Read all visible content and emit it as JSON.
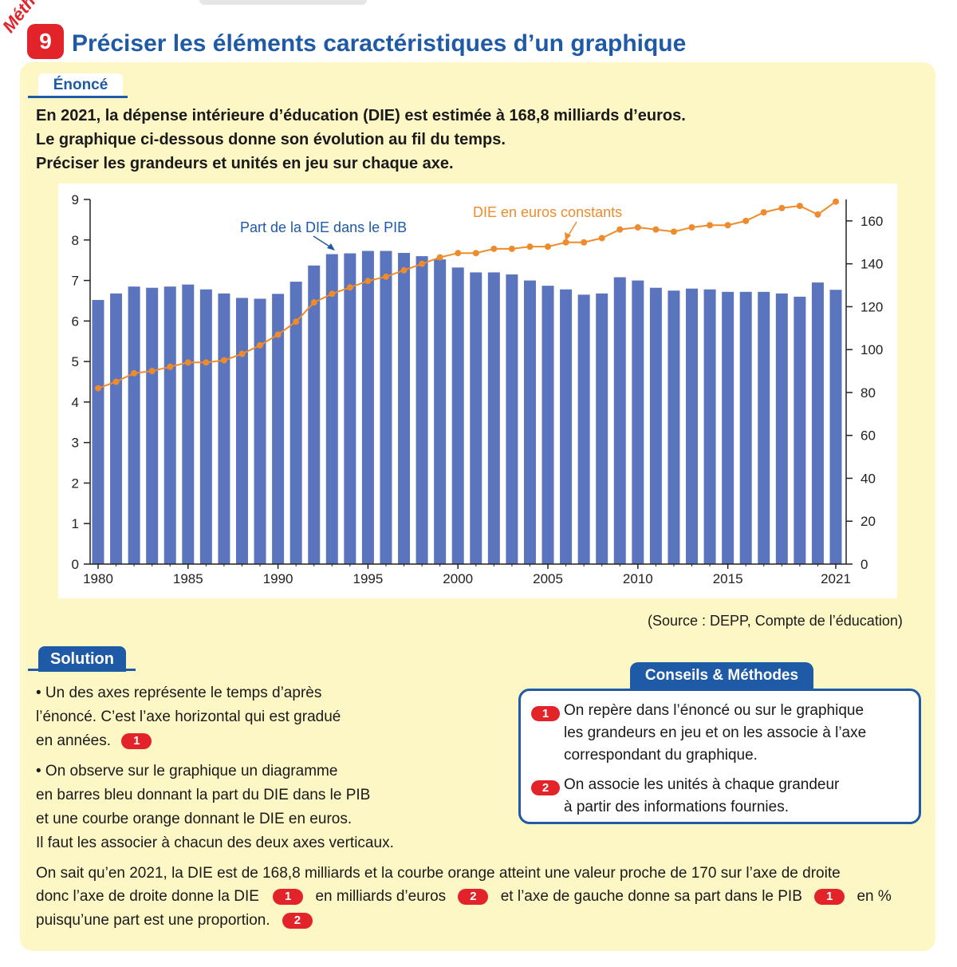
{
  "header": {
    "methode_word": "Méthode",
    "number": "9",
    "title": "Préciser les éléments caractéristiques d’un graphique"
  },
  "enonce": {
    "tab_label": "Énoncé",
    "lines": [
      "En 2021, la dépense intérieure d’éducation (DIE) est estimée à 168,8 milliards d’euros.",
      "Le graphique ci-dessous donne son évolution au fil du temps.",
      "Préciser les grandeurs et unités en jeu sur chaque axe."
    ]
  },
  "source": "(Source : DEPP, Compte de l’éducation)",
  "solution": {
    "tab_label": "Solution",
    "para1": [
      "• Un des axes représente le temps d’après",
      "l’énoncé. C’est l’axe horizontal qui est gradué",
      "en années."
    ],
    "para2": [
      "• On observe sur le graphique un diagramme",
      "en barres bleu donnant la part du DIE dans le PIB",
      "et une courbe orange donnant le DIE en euros.",
      "Il faut les associer à chacun des deux axes verticaux."
    ],
    "para3_line1": "On sait qu’en 2021, la DIE est de 168,8 milliards et la courbe orange atteint une valeur proche de 170 sur l’axe de droite",
    "para3_line2": [
      "donc l’axe de droite donne la DIE",
      "en milliards d’euros",
      "et l’axe de gauche donne sa part dans le PIB",
      "en %"
    ],
    "para3_line3": "puisqu’une part est une proportion.",
    "markers": [
      "1",
      "2"
    ]
  },
  "conseils": {
    "tab_label": "Conseils & Méthodes",
    "item1": [
      "On repère dans l’énoncé ou sur le graphique",
      "les grandeurs en jeu et on les associe à l’axe",
      "correspondant du graphique."
    ],
    "item2": [
      "On associe les unités à chaque grandeur",
      "à partir des informations fournies."
    ]
  },
  "colors": {
    "blue_bars": "#5a74bd",
    "orange_line": "#ee8b2c",
    "title_blue": "#1f5aa6",
    "badge_red": "#e2232a",
    "panel_yellow": "#fdf6c5"
  },
  "chart_data": {
    "type": "bar+line",
    "x": [
      1980,
      1981,
      1982,
      1983,
      1984,
      1985,
      1986,
      1987,
      1988,
      1989,
      1990,
      1991,
      1992,
      1993,
      1994,
      1995,
      1996,
      1997,
      1998,
      1999,
      2000,
      2001,
      2002,
      2003,
      2004,
      2005,
      2006,
      2007,
      2008,
      2009,
      2010,
      2011,
      2012,
      2013,
      2014,
      2015,
      2016,
      2017,
      2018,
      2019,
      2020,
      2021
    ],
    "series": [
      {
        "name": "Part de la DIE dans le PIB",
        "axis": "left",
        "kind": "bar",
        "values": [
          6.52,
          6.68,
          6.85,
          6.82,
          6.85,
          6.9,
          6.78,
          6.68,
          6.57,
          6.55,
          6.67,
          6.97,
          7.37,
          7.65,
          7.67,
          7.73,
          7.73,
          7.68,
          7.6,
          7.52,
          7.32,
          7.2,
          7.2,
          7.15,
          7.0,
          6.87,
          6.78,
          6.65,
          6.68,
          7.08,
          7.0,
          6.82,
          6.75,
          6.8,
          6.78,
          6.72,
          6.72,
          6.72,
          6.68,
          6.6,
          6.95,
          6.77
        ]
      },
      {
        "name": "DIE en euros constants",
        "axis": "right",
        "kind": "line",
        "values": [
          82,
          85,
          89,
          90,
          92,
          94,
          94,
          95,
          98,
          102,
          107,
          113,
          122,
          126,
          129,
          132,
          134,
          137,
          140,
          143,
          145,
          145,
          147,
          147,
          148,
          148,
          150,
          150,
          152,
          156,
          157,
          156,
          155,
          157,
          158,
          158,
          160,
          164,
          166,
          167,
          163,
          169
        ]
      }
    ],
    "left_axis": {
      "min": 0,
      "max": 9,
      "ticks": [
        0,
        1,
        2,
        3,
        4,
        5,
        6,
        7,
        8,
        9
      ]
    },
    "right_axis": {
      "min": 0,
      "max": 170,
      "ticks": [
        0,
        20,
        40,
        60,
        80,
        100,
        120,
        140,
        160
      ]
    },
    "x_ticks": [
      1980,
      1985,
      1990,
      1995,
      2000,
      2005,
      2010,
      2015,
      2021
    ],
    "annotations": [
      "Part de la DIE dans le PIB",
      "DIE en euros constants"
    ]
  }
}
